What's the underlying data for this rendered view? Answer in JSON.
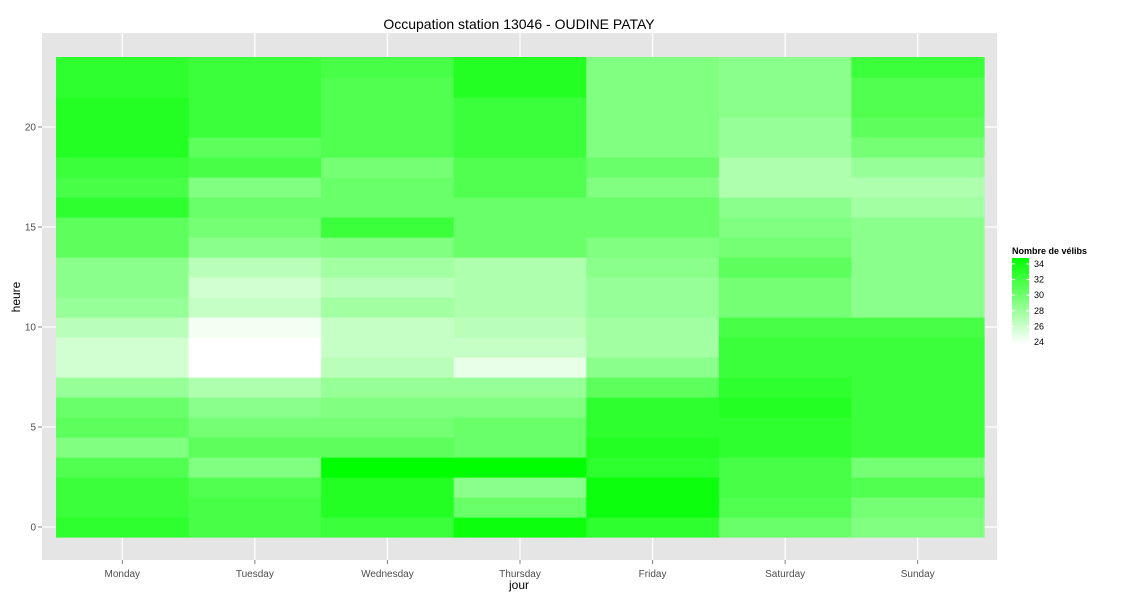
{
  "chart_data": {
    "type": "heatmap",
    "title": "Occupation station 13046 - OUDINE PATAY",
    "xlabel": "jour",
    "ylabel": "heure",
    "categories": [
      "Monday",
      "Tuesday",
      "Wednesday",
      "Thursday",
      "Friday",
      "Saturday",
      "Sunday"
    ],
    "y_values": [
      0,
      1,
      2,
      3,
      4,
      5,
      6,
      7,
      8,
      9,
      10,
      11,
      12,
      13,
      14,
      15,
      16,
      17,
      18,
      19,
      20,
      21,
      22,
      23
    ],
    "ylim": [
      -0.5,
      23.5
    ],
    "yticks": [
      0,
      5,
      10,
      15,
      20
    ],
    "values": [
      [
        33.0,
        32.0,
        32.5,
        34.5,
        33.0,
        30.5,
        29.5
      ],
      [
        32.5,
        32.0,
        33.5,
        30.5,
        34.5,
        31.5,
        30.0
      ],
      [
        32.5,
        31.5,
        33.5,
        29.0,
        34.5,
        32.0,
        31.5
      ],
      [
        31.5,
        29.5,
        35.0,
        35.0,
        33.0,
        32.0,
        30.0
      ],
      [
        29.5,
        31.0,
        31.0,
        30.5,
        33.5,
        33.0,
        32.5
      ],
      [
        31.0,
        30.0,
        30.0,
        30.5,
        33.0,
        33.0,
        32.5
      ],
      [
        30.5,
        29.0,
        29.5,
        29.5,
        33.0,
        33.5,
        32.5
      ],
      [
        28.5,
        27.5,
        28.5,
        28.5,
        31.0,
        33.0,
        32.5
      ],
      [
        26.0,
        24.0,
        27.0,
        25.0,
        29.0,
        32.5,
        32.5
      ],
      [
        26.0,
        24.0,
        26.5,
        26.5,
        28.0,
        32.5,
        32.5
      ],
      [
        27.0,
        24.5,
        26.5,
        27.0,
        28.0,
        32.0,
        32.0
      ],
      [
        28.5,
        26.5,
        28.0,
        27.5,
        28.5,
        30.0,
        29.0
      ],
      [
        29.0,
        26.0,
        27.0,
        27.5,
        28.5,
        30.0,
        29.0
      ],
      [
        29.0,
        27.0,
        28.0,
        27.5,
        29.0,
        31.0,
        29.0
      ],
      [
        31.0,
        29.0,
        29.5,
        30.5,
        29.5,
        30.0,
        29.0
      ],
      [
        31.0,
        30.0,
        32.5,
        30.5,
        30.5,
        29.5,
        29.0
      ],
      [
        33.0,
        30.5,
        30.5,
        30.5,
        30.5,
        29.0,
        28.0
      ],
      [
        32.0,
        29.5,
        30.5,
        31.5,
        29.5,
        27.5,
        27.5
      ],
      [
        32.5,
        32.0,
        30.0,
        31.5,
        30.5,
        27.5,
        28.5
      ],
      [
        33.5,
        31.0,
        31.5,
        32.5,
        29.5,
        28.5,
        30.0
      ],
      [
        33.5,
        32.5,
        31.5,
        32.5,
        29.5,
        28.5,
        31.0
      ],
      [
        33.5,
        32.5,
        31.5,
        32.5,
        29.5,
        29.0,
        31.5
      ],
      [
        33.0,
        32.5,
        31.5,
        33.5,
        29.5,
        29.0,
        31.5
      ],
      [
        33.0,
        32.5,
        32.0,
        33.5,
        29.5,
        29.0,
        32.5
      ]
    ],
    "legend": {
      "title": "Nombre de vélibs",
      "ticks": [
        "34",
        "32",
        "30",
        "28",
        "26",
        "24"
      ],
      "position": "right"
    },
    "grid": true,
    "colors": {
      "panel_bg": "#e5e5e5",
      "grid": "#ffffff",
      "low": "#ffffff",
      "high": "#00ff00"
    }
  }
}
